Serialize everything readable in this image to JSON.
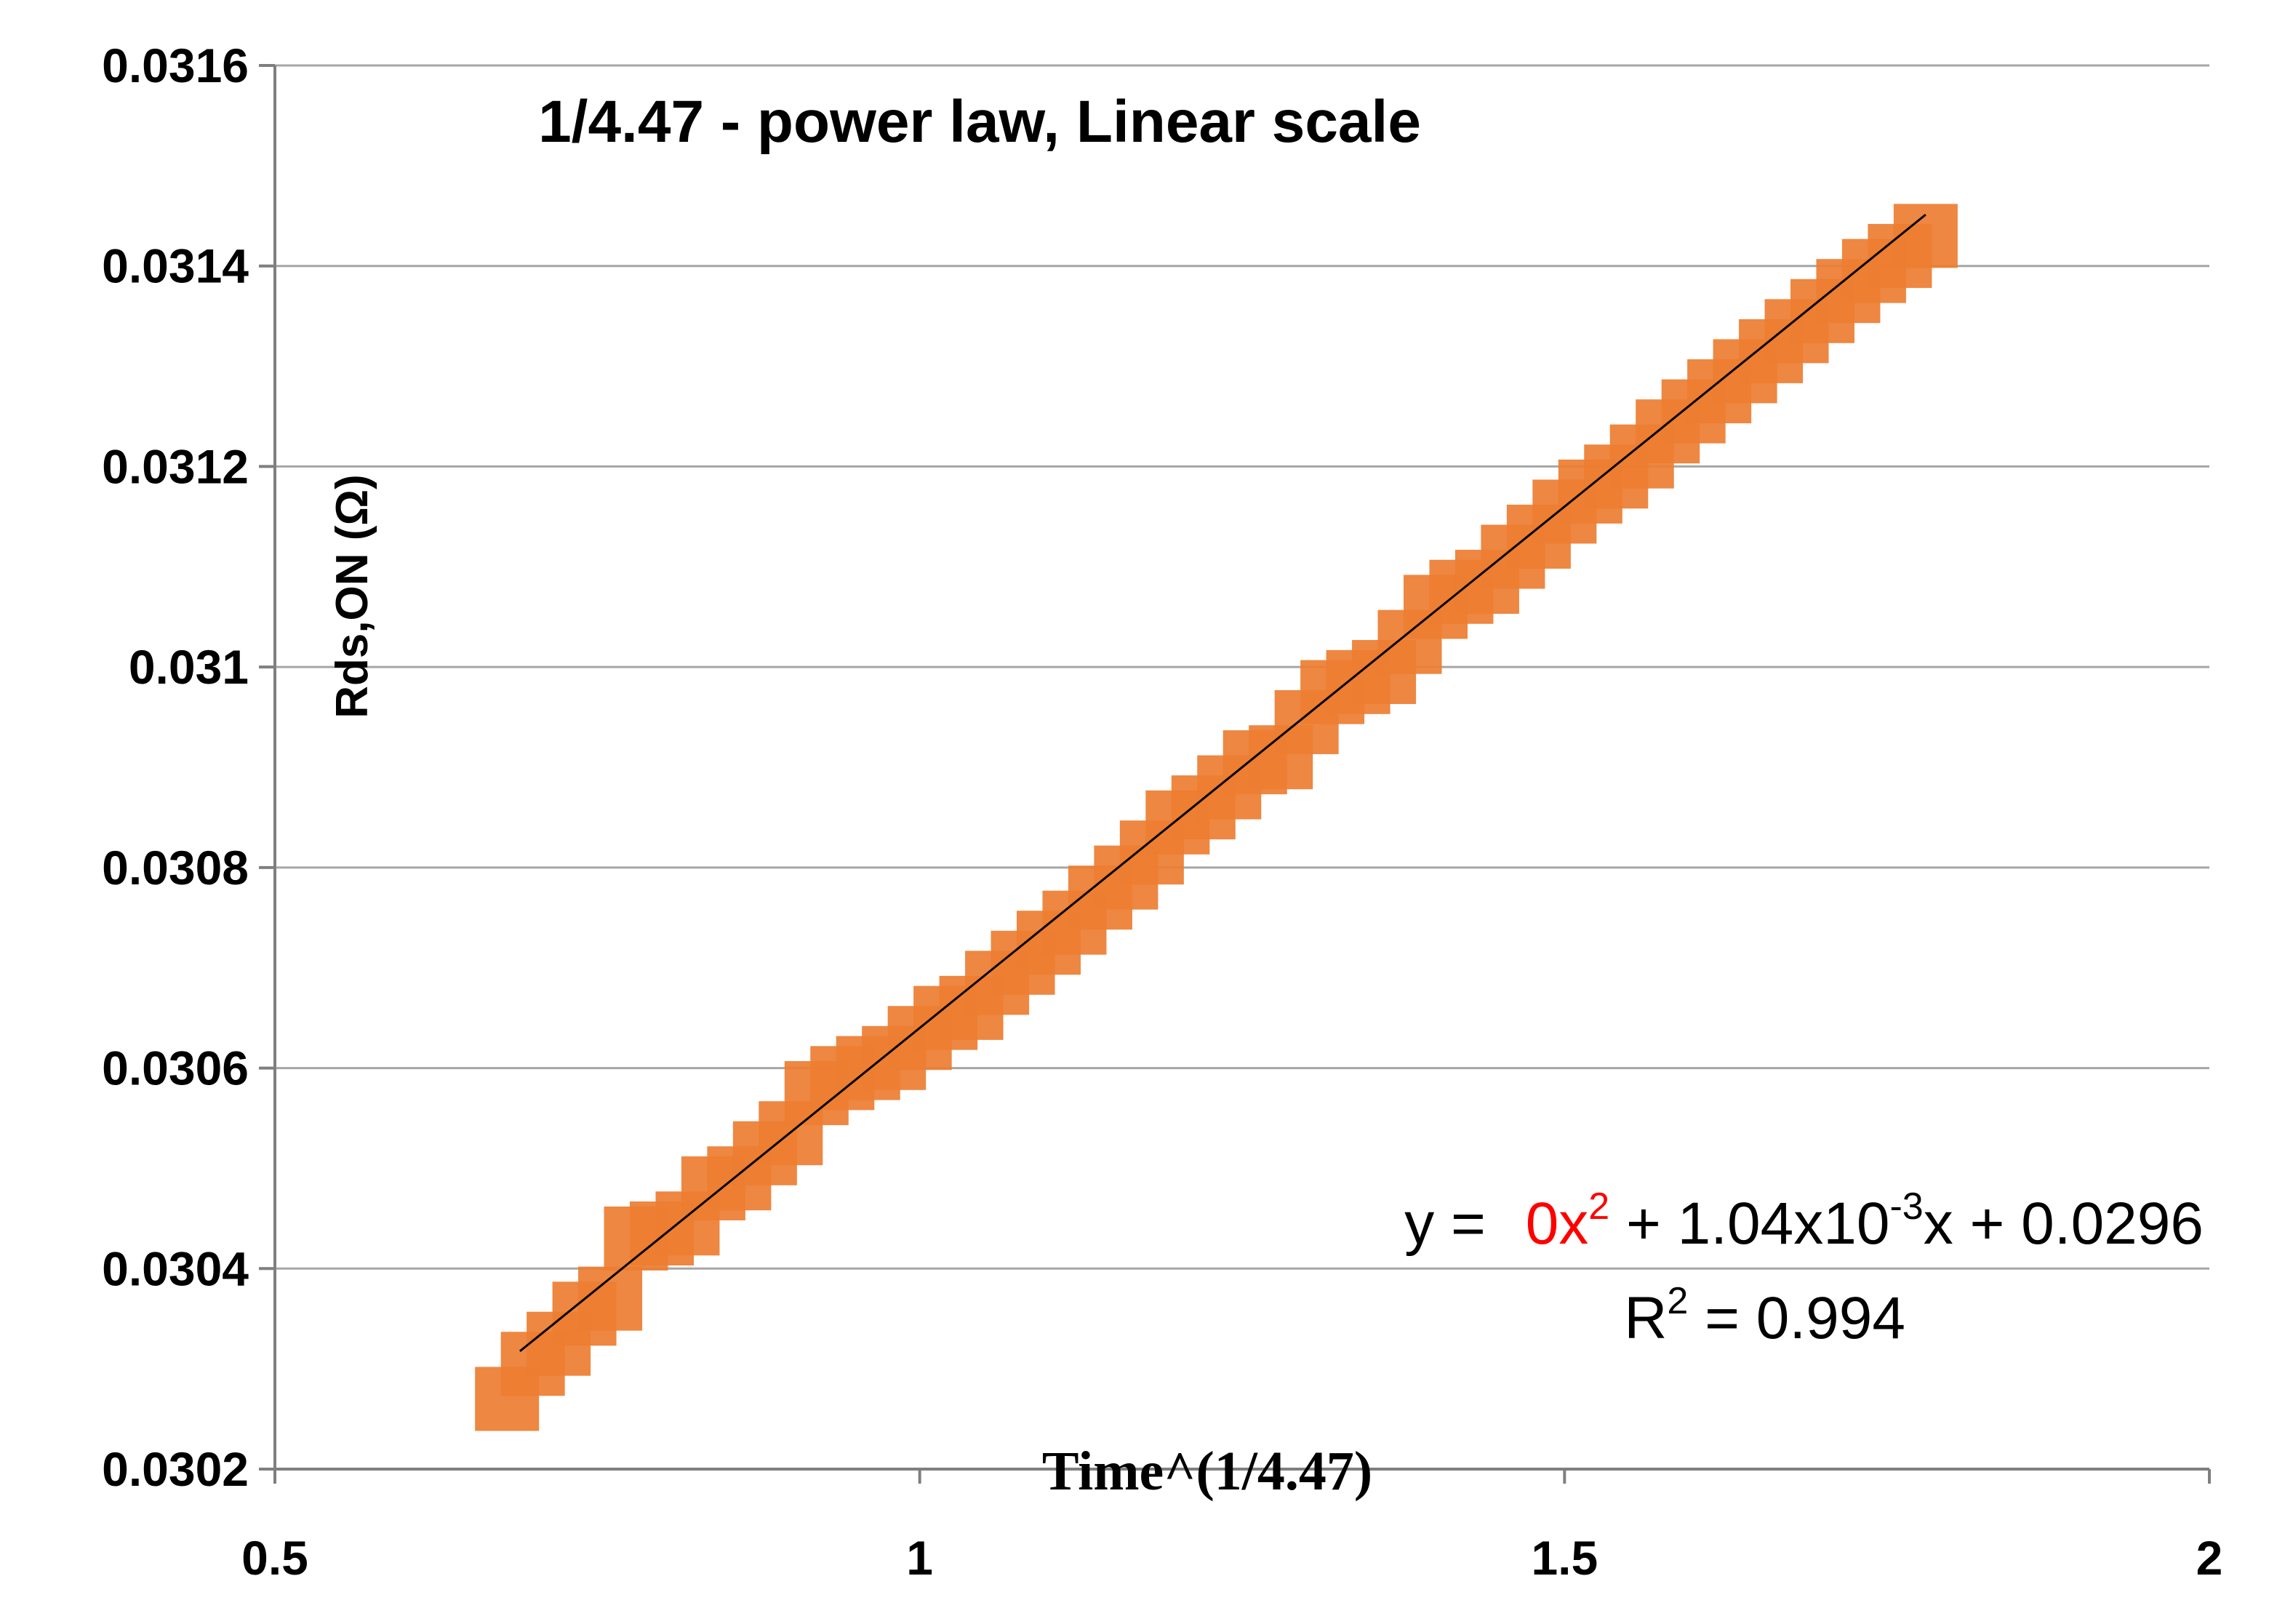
{
  "chart_data": {
    "type": "scatter",
    "title": "1/4.47 - power law, Linear scale",
    "xlabel": "Time^(1/4.47)",
    "ylabel": "Rds,ON (Ω)",
    "xlim": [
      0.5,
      2
    ],
    "ylim": [
      0.0302,
      0.0316
    ],
    "x_ticks": [
      "0.5",
      "1",
      "1.5",
      "2"
    ],
    "y_ticks": [
      "0.0302",
      "0.0304",
      "0.0306",
      "0.0308",
      "0.031",
      "0.0312",
      "0.0314",
      "0.0316"
    ],
    "grid": "horizontal",
    "marker_color": "#ED7D31",
    "trendline_color": "#000000",
    "series": [
      {
        "marker": "square",
        "x": [
          0.68,
          0.7,
          0.72,
          0.74,
          0.76,
          0.78,
          0.8,
          0.82,
          0.84,
          0.86,
          0.88,
          0.9,
          0.92,
          0.94,
          0.96,
          0.98,
          1.0,
          1.02,
          1.04,
          1.06,
          1.08,
          1.1,
          1.12,
          1.14,
          1.16,
          1.18,
          1.2,
          1.22,
          1.24,
          1.26,
          1.28,
          1.3,
          1.32,
          1.34,
          1.36,
          1.38,
          1.4,
          1.42,
          1.44,
          1.46,
          1.48,
          1.5,
          1.52,
          1.54,
          1.56,
          1.58,
          1.6,
          1.62,
          1.64,
          1.66,
          1.68,
          1.7,
          1.72,
          1.74,
          1.76,
          1.78
        ],
        "y": [
          0.03027,
          0.030305,
          0.030325,
          0.030355,
          0.03037,
          0.03043,
          0.030435,
          0.030445,
          0.03048,
          0.03049,
          0.030515,
          0.030535,
          0.030575,
          0.03059,
          0.0306,
          0.03061,
          0.03063,
          0.03065,
          0.03066,
          0.030685,
          0.030705,
          0.030725,
          0.030745,
          0.03077,
          0.03079,
          0.030815,
          0.030845,
          0.03086,
          0.03088,
          0.030905,
          0.03091,
          0.030945,
          0.030975,
          0.030985,
          0.030995,
          0.031025,
          0.03106,
          0.031075,
          0.031085,
          0.03111,
          0.03113,
          0.031155,
          0.031175,
          0.03119,
          0.03121,
          0.031235,
          0.031255,
          0.031275,
          0.031295,
          0.031315,
          0.031335,
          0.031355,
          0.031375,
          0.031395,
          0.03141,
          0.03143
        ]
      }
    ],
    "trendline": {
      "x_range": [
        0.69,
        1.78
      ],
      "coefficients": {
        "a": 0,
        "b": 0.00104,
        "c": 0.0296
      }
    },
    "annotation": {
      "eq_prefix": "y = ",
      "eq_red_part": "0x",
      "eq_red_sup": "2",
      "eq_rest": " + 1.04x10",
      "eq_exp": "-3",
      "eq_tail": "x + 0.0296",
      "r2_prefix": "R",
      "r2_sup": "2",
      "r2_tail": " = 0.994"
    }
  }
}
